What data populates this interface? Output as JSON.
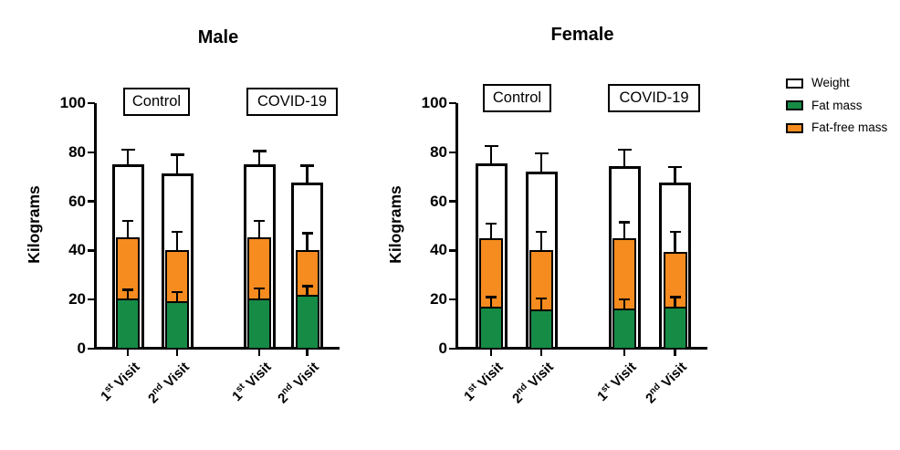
{
  "figure": {
    "legend": {
      "position": "right",
      "items": [
        {
          "label": "Weight",
          "color": "#ffffff",
          "swatch_name": "weight-swatch"
        },
        {
          "label": "Fat mass",
          "color": "#168b46",
          "swatch_name": "fat-mass-swatch"
        },
        {
          "label": "Fat-free mass",
          "color": "#f68b1f",
          "swatch_name": "fat-free-mass-swatch"
        }
      ]
    },
    "colors": {
      "axis": "#000000",
      "weight": "#ffffff",
      "fat_mass": "#168b46",
      "fat_free_mass": "#f68b1f"
    }
  },
  "chart_data": [
    {
      "type": "bar",
      "subtype": "overlaid-bars-with-upper-SD-error",
      "title": "Male",
      "ylabel": "Kilograms",
      "ylim": [
        0,
        100
      ],
      "yticks": [
        0,
        20,
        40,
        60,
        80,
        100
      ],
      "grid": false,
      "group_labels": [
        "Control",
        "COVID-19"
      ],
      "categories": [
        {
          "text": "1st Visit",
          "num": "1",
          "sup": "st",
          "rest": " Visit",
          "group": "Control"
        },
        {
          "text": "2nd Visit",
          "num": "2",
          "sup": "nd",
          "rest": " Visit",
          "group": "Control"
        },
        {
          "text": "1st Visit",
          "num": "1",
          "sup": "st",
          "rest": " Visit",
          "group": "COVID-19"
        },
        {
          "text": "2nd Visit",
          "num": "2",
          "sup": "nd",
          "rest": " Visit",
          "group": "COVID-19"
        }
      ],
      "series": [
        {
          "name": "Weight",
          "values": [
            75,
            71.5,
            75,
            67.5
          ],
          "sd_upper": [
            6,
            7.5,
            5.5,
            7
          ]
        },
        {
          "name": "Fat-free mass",
          "values": [
            45.5,
            40,
            45.5,
            40
          ],
          "sd_upper": [
            6.5,
            7.5,
            6.5,
            7
          ]
        },
        {
          "name": "Fat mass",
          "values": [
            20.5,
            19.5,
            20.5,
            22
          ],
          "sd_upper": [
            3.5,
            3.5,
            4,
            3.5
          ]
        }
      ]
    },
    {
      "type": "bar",
      "subtype": "overlaid-bars-with-upper-SD-error",
      "title": "Female",
      "ylabel": "Kilograms",
      "ylim": [
        0,
        100
      ],
      "yticks": [
        0,
        20,
        40,
        60,
        80,
        100
      ],
      "grid": false,
      "group_labels": [
        "Control",
        "COVID-19"
      ],
      "categories": [
        {
          "text": "1st Visit",
          "num": "1",
          "sup": "st",
          "rest": " Visit",
          "group": "Control"
        },
        {
          "text": "2nd Visit",
          "num": "2",
          "sup": "nd",
          "rest": " Visit",
          "group": "Control"
        },
        {
          "text": "1st Visit",
          "num": "1",
          "sup": "st",
          "rest": " Visit",
          "group": "COVID-19"
        },
        {
          "text": "2nd Visit",
          "num": "2",
          "sup": "nd",
          "rest": " Visit",
          "group": "COVID-19"
        }
      ],
      "series": [
        {
          "name": "Weight",
          "values": [
            75.5,
            72,
            74.5,
            67.5
          ],
          "sd_upper": [
            7,
            7.5,
            6.5,
            6.5
          ]
        },
        {
          "name": "Fat-free mass",
          "values": [
            45,
            40,
            45,
            39.5
          ],
          "sd_upper": [
            6,
            7.5,
            6.5,
            8
          ]
        },
        {
          "name": "Fat mass",
          "values": [
            17,
            16,
            16.5,
            17
          ],
          "sd_upper": [
            4,
            4.5,
            3.5,
            4
          ]
        }
      ]
    }
  ]
}
